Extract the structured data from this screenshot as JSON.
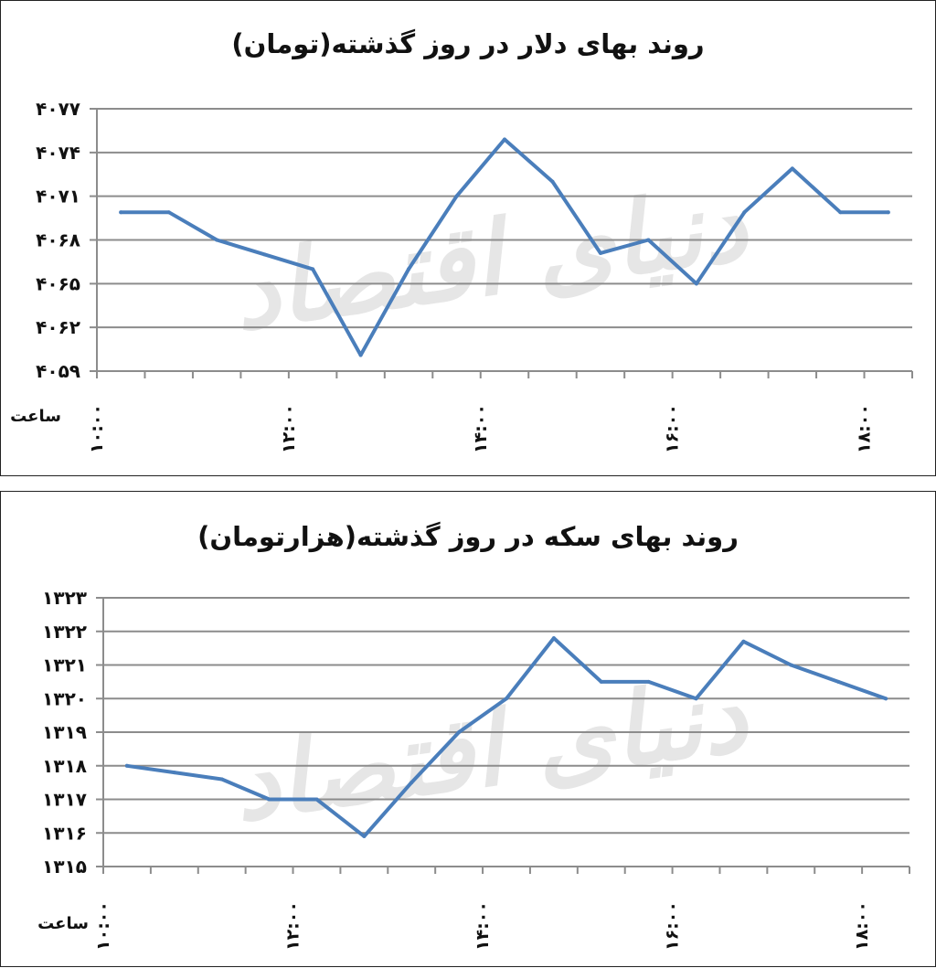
{
  "charts": [
    {
      "title": "روند بهای دلار در روز گذشته(تومان)",
      "watermark": "دنیای اقتصاد",
      "xlabel": "ساعت"
    },
    {
      "title": "روند بهای سکه در روز گذشته(هزارتومان)",
      "watermark": "دنیای اقتصاد",
      "xlabel": "ساعت"
    }
  ],
  "chart_data": [
    {
      "type": "line",
      "title": "روند بهای دلار در روز گذشته(تومان)",
      "xlabel": "ساعت",
      "ylabel": "",
      "ylim": [
        4059,
        4077
      ],
      "yticks": [
        4059,
        4062,
        4065,
        4068,
        4071,
        4074,
        4077
      ],
      "ytick_labels": [
        "۴۰۵۹",
        "۴۰۶۲",
        "۴۰۶۵",
        "۴۰۶۸",
        "۴۰۷۱",
        "۴۰۷۴",
        "۴۰۷۷"
      ],
      "x_tick_labels": [
        "۱۰:۰۰",
        "۱۲:۰۰",
        "۱۴:۰۰",
        "۱۶:۰۰",
        "۱۸:۰۰"
      ],
      "x_tick_label_index": [
        0,
        4,
        8,
        12,
        16
      ],
      "values": [
        4069.9,
        4069.9,
        4068.0,
        4067.0,
        4066.0,
        4060.1,
        4066.0,
        4071.0,
        4074.9,
        4072.0,
        4067.1,
        4068.0,
        4065.0,
        4069.9,
        4072.9,
        4069.9,
        4069.9
      ],
      "grid": true,
      "color": "#4a7ebb"
    },
    {
      "type": "line",
      "title": "روند بهای سکه در روز گذشته(هزارتومان)",
      "xlabel": "ساعت",
      "ylabel": "",
      "ylim": [
        1315,
        1323
      ],
      "yticks": [
        1315,
        1316,
        1317,
        1318,
        1319,
        1320,
        1321,
        1322,
        1323
      ],
      "ytick_labels": [
        "۱۳۱۵",
        "۱۳۱۶",
        "۱۳۱۷",
        "۱۳۱۸",
        "۱۳۱۹",
        "۱۳۲۰",
        "۱۳۲۱",
        "۱۳۲۲",
        "۱۳۲۳"
      ],
      "x_tick_labels": [
        "۱۰:۰۰",
        "۱۲:۰۰",
        "۱۴:۰۰",
        "۱۶:۰۰",
        "۱۸:۰۰"
      ],
      "x_tick_label_index": [
        0,
        4,
        8,
        12,
        16
      ],
      "values": [
        1318.0,
        1317.8,
        1317.6,
        1317.0,
        1317.0,
        1315.9,
        1317.5,
        1319.0,
        1320.0,
        1321.8,
        1320.5,
        1320.5,
        1320.0,
        1321.7,
        1321.0,
        1320.5,
        1320.0
      ],
      "grid": true,
      "color": "#4a7ebb"
    }
  ]
}
